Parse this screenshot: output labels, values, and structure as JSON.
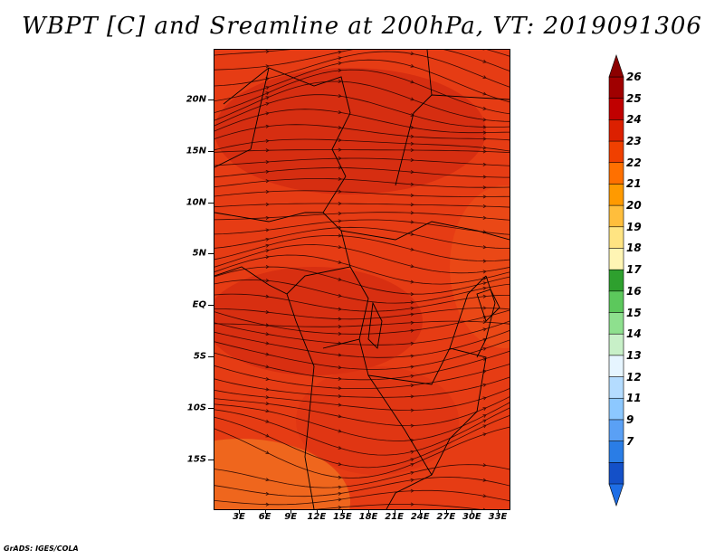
{
  "title": "WBPT [C] and Sreamline at 200hPa, VT: 2019091306",
  "credit": "GrADS: IGES/COLA",
  "y_axis_labels": [
    "20N",
    "15N",
    "10N",
    "5N",
    "EQ",
    "5S",
    "10S",
    "15S"
  ],
  "x_axis_labels": [
    "3E",
    "6E",
    "9E",
    "12E",
    "15E",
    "18E",
    "21E",
    "24E",
    "27E",
    "30E",
    "33E"
  ],
  "colorbar": {
    "labels": [
      "26",
      "25",
      "24",
      "23",
      "22",
      "21",
      "20",
      "19",
      "18",
      "17",
      "16",
      "15",
      "14",
      "13",
      "12",
      "11",
      "9",
      "7"
    ],
    "colors": [
      "#a00000",
      "#c00000",
      "#dc2000",
      "#f04000",
      "#ff7000",
      "#ff9a00",
      "#ffbe3c",
      "#ffe482",
      "#fff5b4",
      "#2ea02e",
      "#5cc85c",
      "#8ee08e",
      "#c8f0c8",
      "#e6f5ff",
      "#b4dcff",
      "#8cc8ff",
      "#5aa0f5",
      "#2a7de6",
      "#1450c8"
    ]
  },
  "field_colors": {
    "dominant": "#e63c14",
    "warm_core": "#d22a10",
    "cool_edge": "#f06a1e"
  }
}
